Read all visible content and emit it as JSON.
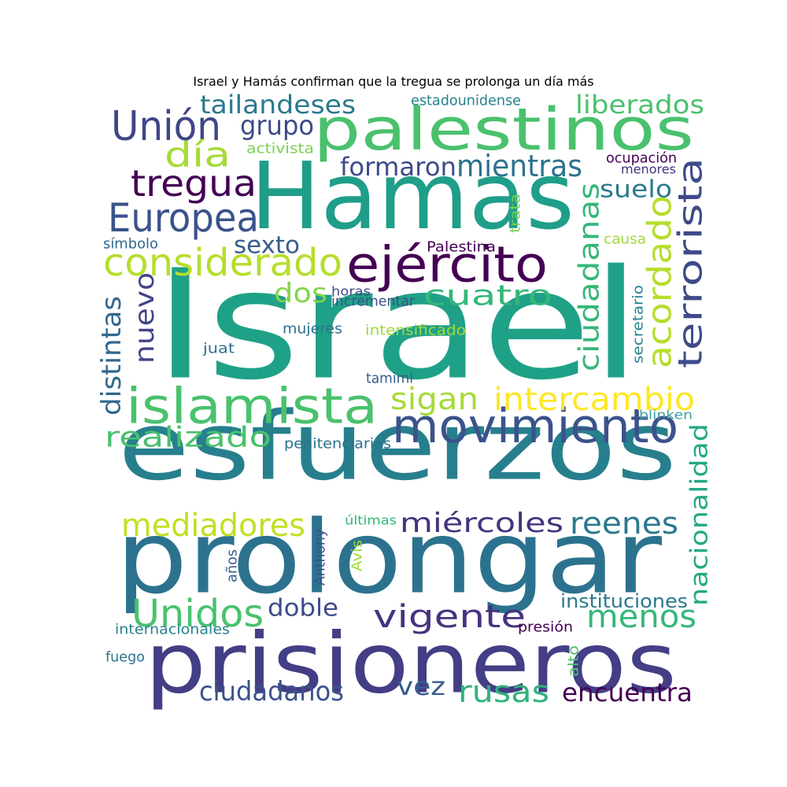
{
  "title": "Israel y Hamás confirman que la tregua se prolonga un día más",
  "colors": [
    "#440154",
    "#46327e",
    "#365c8d",
    "#277f8e",
    "#1fa187",
    "#4ac16d",
    "#a0da39",
    "#fde725"
  ],
  "words": [
    {
      "text": "Israel",
      "color": "#1fa187"
    },
    {
      "text": "Hamas",
      "color": "#1f9e89"
    },
    {
      "text": "esfuerzos",
      "color": "#277f8e"
    },
    {
      "text": "prolongar",
      "color": "#2c728e"
    },
    {
      "text": "prisioneros",
      "color": "#433e85"
    },
    {
      "text": "palestinos",
      "color": "#4ac16d"
    },
    {
      "text": "ejército",
      "color": "#440154"
    },
    {
      "text": "islamista",
      "color": "#4ac16d"
    },
    {
      "text": "movimiento",
      "color": "#3b528b"
    },
    {
      "text": "Unión",
      "color": "#404688"
    },
    {
      "text": "Europea",
      "color": "#3b528b"
    },
    {
      "text": "tregua",
      "color": "#440154"
    },
    {
      "text": "considerado",
      "color": "#b5de2b"
    },
    {
      "text": "día",
      "color": "#a5db36"
    },
    {
      "text": "tailandeses",
      "color": "#2a788e"
    },
    {
      "text": "grupo",
      "color": "#3e4a89"
    },
    {
      "text": "liberados",
      "color": "#4ac16d"
    },
    {
      "text": "formaron",
      "color": "#3e4a89"
    },
    {
      "text": "mientras",
      "color": "#2c728e"
    },
    {
      "text": "terrorista",
      "color": "#3e4a89"
    },
    {
      "text": "acordado",
      "color": "#b5de2b"
    },
    {
      "text": "ciudadanas",
      "color": "#35b779"
    },
    {
      "text": "suelo",
      "color": "#2a788e"
    },
    {
      "text": "sexto",
      "color": "#365c8d"
    },
    {
      "text": "dos",
      "color": "#84d44b"
    },
    {
      "text": "cuatro",
      "color": "#35b779"
    },
    {
      "text": "nuevo",
      "color": "#414487"
    },
    {
      "text": "distintas",
      "color": "#31688e"
    },
    {
      "text": "sigan",
      "color": "#a5db36"
    },
    {
      "text": "intercambio",
      "color": "#fde725"
    },
    {
      "text": "realizado",
      "color": "#4ac16d"
    },
    {
      "text": "nacionalidad",
      "color": "#22a884"
    },
    {
      "text": "mediadores",
      "color": "#c2df23"
    },
    {
      "text": "miércoles",
      "color": "#46327e"
    },
    {
      "text": "reenes",
      "color": "#2a788e"
    },
    {
      "text": "Unidos",
      "color": "#4ac16d"
    },
    {
      "text": "doble",
      "color": "#3e4a89"
    },
    {
      "text": "vigente",
      "color": "#46327e"
    },
    {
      "text": "menos",
      "color": "#35b779"
    },
    {
      "text": "ciudadanos",
      "color": "#3b528b"
    },
    {
      "text": "vez",
      "color": "#365c8d"
    },
    {
      "text": "rusas",
      "color": "#2fb47c"
    },
    {
      "text": "encuentra",
      "color": "#440154"
    },
    {
      "text": "instituciones",
      "color": "#2a788e"
    },
    {
      "text": "estadounidense",
      "color": "#26828e"
    },
    {
      "text": "activista",
      "color": "#7ad151"
    },
    {
      "text": "ocupación",
      "color": "#440154"
    },
    {
      "text": "menores",
      "color": "#46327e"
    },
    {
      "text": "trata",
      "color": "#7ad151"
    },
    {
      "text": "símbolo",
      "color": "#31688e"
    },
    {
      "text": "Palestina",
      "color": "#440154"
    },
    {
      "text": "causa",
      "color": "#a0da39"
    },
    {
      "text": "horas",
      "color": "#414487"
    },
    {
      "text": "incrementar",
      "color": "#3b528b"
    },
    {
      "text": "secretario",
      "color": "#26828e"
    },
    {
      "text": "mujeres",
      "color": "#2c728e"
    },
    {
      "text": "intensificado",
      "color": "#a0da39"
    },
    {
      "text": "juat",
      "color": "#2c728e"
    },
    {
      "text": "tamimi",
      "color": "#365c8d"
    },
    {
      "text": "blinken",
      "color": "#3e9f9f"
    },
    {
      "text": "penitenciarias",
      "color": "#2c728e"
    },
    {
      "text": "últimas",
      "color": "#35b779"
    },
    {
      "text": "Anthony",
      "color": "#3b528b"
    },
    {
      "text": "Avis",
      "color": "#a0da39"
    },
    {
      "text": "años",
      "color": "#365c8d"
    },
    {
      "text": "internacionales",
      "color": "#26828e"
    },
    {
      "text": "presión",
      "color": "#440154"
    },
    {
      "text": "fuego",
      "color": "#2c728e"
    },
    {
      "text": "alto",
      "color": "#4ac16d"
    }
  ]
}
